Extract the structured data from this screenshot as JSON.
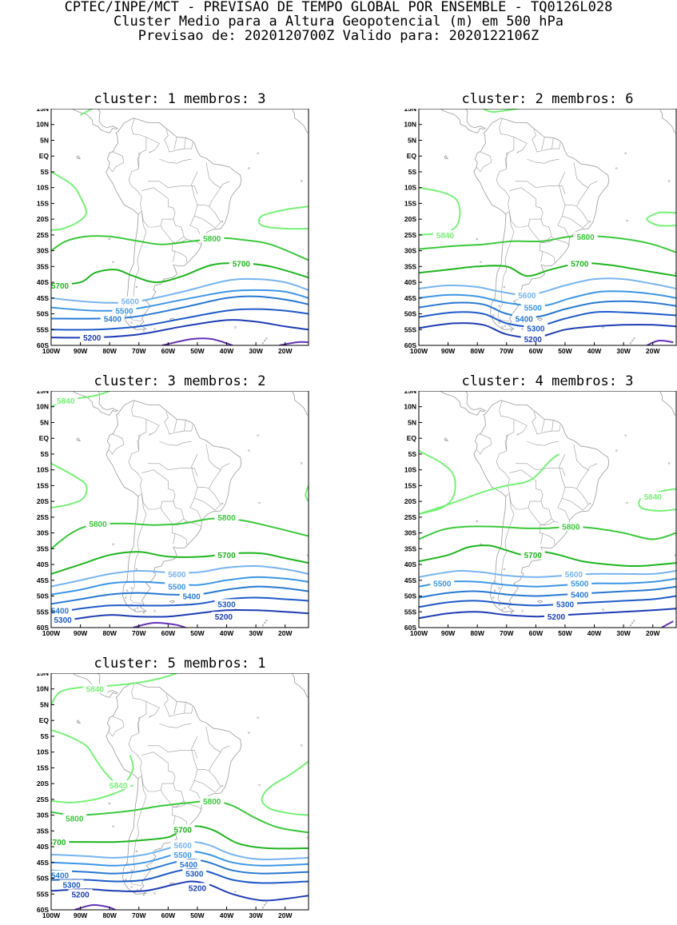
{
  "header": {
    "line1": "CPTEC/INPE/MCT - PREVISAO DE TEMPO GLOBAL POR ENSEMBLE - TQ0126L028",
    "line2": "Cluster Medio para a Altura Geopotencial (m) em 500 hPa",
    "line3": "Previsao de: 2020120700Z   Valido para: 2020122106Z"
  },
  "map": {
    "lat_labels": [
      "15N",
      "10N",
      "5N",
      "EQ",
      "5S",
      "10S",
      "15S",
      "20S",
      "25S",
      "30S",
      "35S",
      "40S",
      "45S",
      "50S",
      "55S",
      "60S"
    ],
    "lon_labels": [
      "100W",
      "90W",
      "80W",
      "70W",
      "60W",
      "50W",
      "40W",
      "30W",
      "20W"
    ],
    "lat_range": [
      -60,
      15
    ],
    "lon_range": [
      -100,
      -12
    ]
  },
  "contour_colors": {
    "5840": "#78f078",
    "5800": "#3cc83c",
    "5700": "#1eb41e",
    "5600": "#78b4f0",
    "5500": "#3c96e6",
    "5400": "#2878d2",
    "5300": "#1e5ac8",
    "5200": "#1e3cb4",
    "5100": "#6432b4"
  },
  "panels": [
    {
      "title": "cluster: 1   membros: 3",
      "labels": [
        {
          "text": "5800",
          "lon": -45,
          "lat": -26
        },
        {
          "text": "5700",
          "lon": -35,
          "lat": -34
        },
        {
          "text": "5700",
          "lon": -97,
          "lat": -41
        },
        {
          "text": "5600",
          "lon": -73,
          "lat": -46
        },
        {
          "text": "5500",
          "lon": -75,
          "lat": -49
        },
        {
          "text": "5400",
          "lon": -79,
          "lat": -51.5
        },
        {
          "text": "5200",
          "lon": -86,
          "lat": -57.5
        }
      ]
    },
    {
      "title": "cluster: 2   membros: 6",
      "labels": [
        {
          "text": "5840",
          "lon": -91,
          "lat": -25
        },
        {
          "text": "5800",
          "lon": -43,
          "lat": -25.5
        },
        {
          "text": "5700",
          "lon": -45,
          "lat": -34
        },
        {
          "text": "5600",
          "lon": -63,
          "lat": -44
        },
        {
          "text": "5500",
          "lon": -61,
          "lat": -48
        },
        {
          "text": "5400",
          "lon": -64,
          "lat": -51.5
        },
        {
          "text": "5300",
          "lon": -60,
          "lat": -54.5
        },
        {
          "text": "5200",
          "lon": -61,
          "lat": -58
        }
      ]
    },
    {
      "title": "cluster: 3   membros: 2",
      "labels": [
        {
          "text": "5840",
          "lon": -95,
          "lat": 12
        },
        {
          "text": "5800",
          "lon": -84,
          "lat": -27
        },
        {
          "text": "5800",
          "lon": -40,
          "lat": -25
        },
        {
          "text": "5700",
          "lon": -40,
          "lat": -37
        },
        {
          "text": "5600",
          "lon": -57,
          "lat": -43
        },
        {
          "text": "5500",
          "lon": -57,
          "lat": -47
        },
        {
          "text": "5400",
          "lon": -52,
          "lat": -50
        },
        {
          "text": "5300",
          "lon": -40,
          "lat": -52.5
        },
        {
          "text": "5400",
          "lon": -97,
          "lat": -54.5
        },
        {
          "text": "5300",
          "lon": -96,
          "lat": -57.5
        },
        {
          "text": "5200",
          "lon": -41,
          "lat": -56.5
        }
      ]
    },
    {
      "title": "cluster: 4   membros: 3",
      "labels": [
        {
          "text": "5840",
          "lon": -20,
          "lat": -18.5
        },
        {
          "text": "5800",
          "lon": -48,
          "lat": -28
        },
        {
          "text": "5700",
          "lon": -61,
          "lat": -37
        },
        {
          "text": "5600",
          "lon": -47,
          "lat": -43
        },
        {
          "text": "5500",
          "lon": -92,
          "lat": -46
        },
        {
          "text": "5500",
          "lon": -45,
          "lat": -46
        },
        {
          "text": "5400",
          "lon": -45,
          "lat": -49.5
        },
        {
          "text": "5300",
          "lon": -50,
          "lat": -52.5
        },
        {
          "text": "5200",
          "lon": -53,
          "lat": -56.5
        }
      ]
    },
    {
      "title": "cluster: 5   membros: 1",
      "labels": [
        {
          "text": "5840",
          "lon": -85,
          "lat": 10
        },
        {
          "text": "5840",
          "lon": -77,
          "lat": -20.5
        },
        {
          "text": "5800",
          "lon": -92,
          "lat": -31
        },
        {
          "text": "5800",
          "lon": -45,
          "lat": -25.5
        },
        {
          "text": "5700",
          "lon": -98,
          "lat": -38.5
        },
        {
          "text": "5700",
          "lon": -55,
          "lat": -34.5
        },
        {
          "text": "5600",
          "lon": -55,
          "lat": -39.5
        },
        {
          "text": "5500",
          "lon": -55,
          "lat": -42.5
        },
        {
          "text": "5400",
          "lon": -53,
          "lat": -45.5
        },
        {
          "text": "5300",
          "lon": -51,
          "lat": -48.5
        },
        {
          "text": "5200",
          "lon": -50,
          "lat": -53
        },
        {
          "text": "5400",
          "lon": -97,
          "lat": -49
        },
        {
          "text": "5300",
          "lon": -93,
          "lat": -52
        },
        {
          "text": "5200",
          "lon": -90,
          "lat": -55
        }
      ]
    }
  ]
}
